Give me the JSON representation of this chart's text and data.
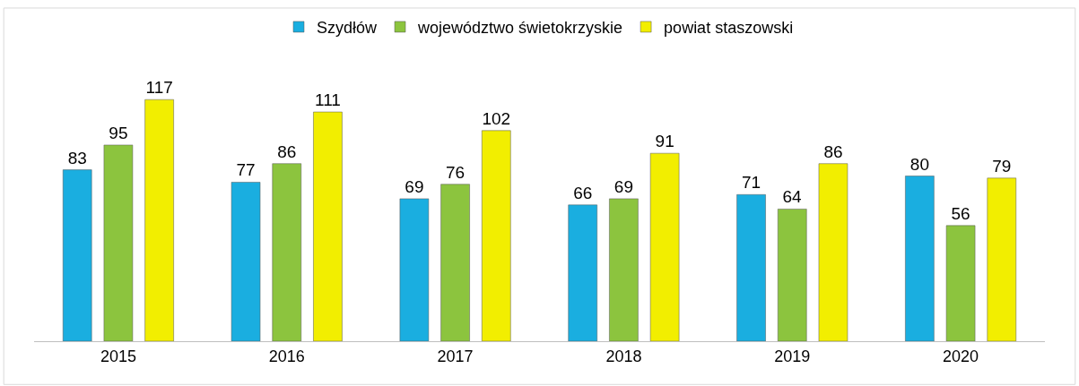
{
  "chart_data": {
    "type": "bar",
    "categories": [
      "2015",
      "2016",
      "2017",
      "2018",
      "2019",
      "2020"
    ],
    "series": [
      {
        "name": "Szydłów",
        "color": "#1aaee0",
        "values": [
          83,
          77,
          69,
          66,
          71,
          80
        ]
      },
      {
        "name": "województwo świetokrzyskie",
        "color": "#8cc43e",
        "values": [
          95,
          86,
          76,
          69,
          64,
          56
        ]
      },
      {
        "name": "powiat staszowski",
        "color": "#f2ee00",
        "values": [
          117,
          111,
          102,
          91,
          86,
          79
        ]
      }
    ],
    "data_labels": true,
    "legend": "top",
    "tick_labels": "x"
  }
}
